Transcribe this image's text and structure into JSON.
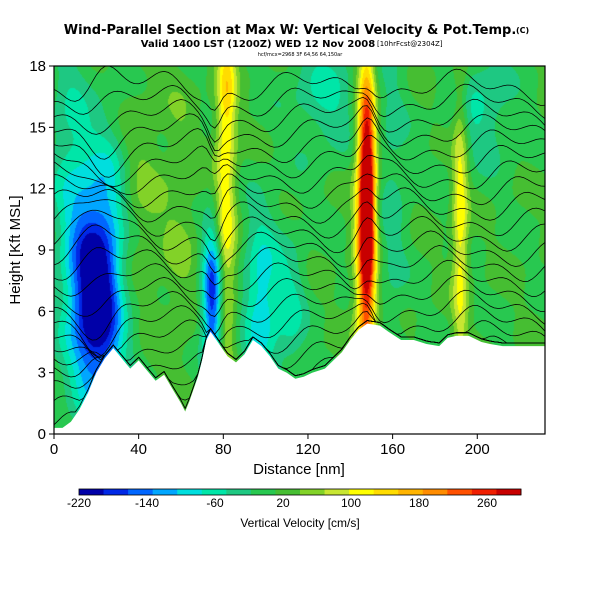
{
  "chart_data": {
    "type": "heatmap",
    "title": "Wind-Parallel Section at Max W: Vertical Velocity & Pot.Temp.",
    "title_mark": "(C)",
    "subtitle": "Valid 1400 LST (1200Z) WED 12 Nov 2008",
    "subtitle_tag": "[10hrFcst@2304Z]",
    "info_line": "hcf/mcx=2968 3F 64,56 64,150ar",
    "xlabel": "Distance [nm]",
    "ylabel": "Height [Kft MSL]",
    "xlim": [
      0,
      232
    ],
    "ylim": [
      0,
      18
    ],
    "x_ticks": [
      0,
      40,
      80,
      120,
      160,
      200
    ],
    "y_ticks": [
      0,
      3,
      6,
      9,
      12,
      15,
      18
    ],
    "colorbar": {
      "label": "Vertical Velocity [cm/s]",
      "range": [
        -220,
        300
      ],
      "ticks": [
        -220,
        -140,
        -60,
        20,
        100,
        180,
        260
      ],
      "colors": [
        "#0000a8",
        "#0028e6",
        "#0066ff",
        "#00a6ff",
        "#00dede",
        "#00e6a8",
        "#1ec882",
        "#28c850",
        "#46be32",
        "#82d228",
        "#c8e632",
        "#ffff00",
        "#ffdc00",
        "#ffb400",
        "#ff8c00",
        "#ff5000",
        "#f01e00",
        "#c80000"
      ]
    },
    "terrain_nm_kft": [
      [
        0,
        0.3
      ],
      [
        4,
        0.3
      ],
      [
        8,
        0.6
      ],
      [
        12,
        1.2
      ],
      [
        16,
        2.0
      ],
      [
        20,
        3.0
      ],
      [
        24,
        3.7
      ],
      [
        28,
        4.2
      ],
      [
        32,
        3.7
      ],
      [
        36,
        3.2
      ],
      [
        40,
        3.6
      ],
      [
        44,
        3.1
      ],
      [
        48,
        2.6
      ],
      [
        52,
        2.9
      ],
      [
        56,
        2.2
      ],
      [
        60,
        1.5
      ],
      [
        62,
        1.1
      ],
      [
        64,
        1.6
      ],
      [
        68,
        2.8
      ],
      [
        70,
        3.6
      ],
      [
        72,
        4.6
      ],
      [
        74,
        5.0
      ],
      [
        78,
        4.4
      ],
      [
        82,
        3.8
      ],
      [
        86,
        3.5
      ],
      [
        90,
        3.9
      ],
      [
        94,
        4.6
      ],
      [
        98,
        4.3
      ],
      [
        102,
        3.8
      ],
      [
        106,
        3.2
      ],
      [
        110,
        3.0
      ],
      [
        114,
        2.7
      ],
      [
        118,
        2.8
      ],
      [
        122,
        3.0
      ],
      [
        128,
        3.2
      ],
      [
        132,
        3.6
      ],
      [
        136,
        4.0
      ],
      [
        140,
        4.6
      ],
      [
        144,
        5.1
      ],
      [
        148,
        5.4
      ],
      [
        154,
        5.3
      ],
      [
        158,
        5.0
      ],
      [
        164,
        4.6
      ],
      [
        170,
        4.6
      ],
      [
        176,
        4.4
      ],
      [
        182,
        4.3
      ],
      [
        186,
        4.7
      ],
      [
        190,
        4.8
      ],
      [
        196,
        4.8
      ],
      [
        202,
        4.5
      ],
      [
        206,
        4.4
      ],
      [
        212,
        4.3
      ],
      [
        232,
        4.3
      ]
    ],
    "vertical_velocity_features": [
      {
        "x": 22,
        "z": 6.0,
        "w": -220,
        "sx": 10,
        "sz": 3.2
      },
      {
        "x": 16,
        "z": 9.5,
        "w": -90,
        "sx": 7,
        "sz": 4
      },
      {
        "x": 28,
        "z": 11.5,
        "w": -60,
        "sx": 6,
        "sz": 3
      },
      {
        "x": 32,
        "z": 7.0,
        "w": 40,
        "sx": 5,
        "sz": 3
      },
      {
        "x": 40,
        "z": 10.0,
        "w": 40,
        "sx": 8,
        "sz": 5
      },
      {
        "x": 60,
        "z": 10.5,
        "w": 30,
        "sx": 6,
        "sz": 5
      },
      {
        "x": 75,
        "z": 6.5,
        "w": -210,
        "sx": 3.5,
        "sz": 2.5
      },
      {
        "x": 81,
        "z": 10.5,
        "w": 110,
        "sx": 3.5,
        "sz": 6
      },
      {
        "x": 82,
        "z": 17.0,
        "w": 70,
        "sx": 3,
        "sz": 2
      },
      {
        "x": 98,
        "z": 6.5,
        "w": -110,
        "sx": 6,
        "sz": 3
      },
      {
        "x": 112,
        "z": 6.0,
        "w": -60,
        "sx": 5,
        "sz": 2.5
      },
      {
        "x": 128,
        "z": 16.5,
        "w": -60,
        "sx": 12,
        "sz": 2
      },
      {
        "x": 148,
        "z": 11.5,
        "w": 270,
        "sx": 2.6,
        "sz": 4
      },
      {
        "x": 147,
        "z": 9.0,
        "w": 150,
        "sx": 3.5,
        "sz": 7
      },
      {
        "x": 160,
        "z": 12.0,
        "w": -40,
        "sx": 5,
        "sz": 6
      },
      {
        "x": 192,
        "z": 10.5,
        "w": 110,
        "sx": 2.6,
        "sz": 5.5
      },
      {
        "x": 202,
        "z": 16.0,
        "w": -60,
        "sx": 10,
        "sz": 2
      },
      {
        "x": 6,
        "z": 14.0,
        "w": -50,
        "sx": 6,
        "sz": 4
      }
    ]
  }
}
